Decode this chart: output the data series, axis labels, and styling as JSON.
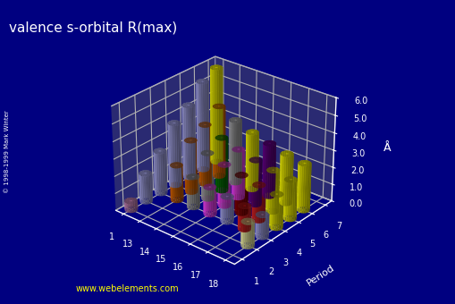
{
  "title": "valence s-orbital R(max)",
  "ylabel": "Period",
  "zlabel": "Å",
  "background_color": "#000080",
  "floor_color": "#555566",
  "title_color": "white",
  "zlim": [
    0,
    6.0
  ],
  "zticks": [
    0.0,
    1.0,
    2.0,
    3.0,
    4.0,
    5.0,
    6.0
  ],
  "groups": [
    1,
    13,
    14,
    15,
    16,
    17,
    18
  ],
  "periods": [
    1,
    2,
    3,
    4,
    5,
    6,
    7
  ],
  "values": [
    [
      0.53,
      0,
      0,
      0,
      0,
      0,
      0
    ],
    [
      1.67,
      0,
      0,
      0,
      0,
      0,
      1.4
    ],
    [
      2.51,
      2.07,
      1.79,
      1.6,
      1.47,
      1.35,
      1.27
    ],
    [
      3.71,
      3.07,
      2.71,
      2.43,
      2.22,
      2.06,
      1.94
    ],
    [
      4.32,
      3.54,
      3.15,
      2.85,
      2.62,
      2.43,
      2.29
    ],
    [
      5.29,
      4.19,
      3.74,
      3.4,
      3.13,
      2.91,
      2.75
    ],
    [
      5.71,
      0,
      0,
      0,
      0,
      0,
      0
    ]
  ],
  "colors": [
    [
      "#cc88bb",
      null,
      null,
      null,
      null,
      null,
      null
    ],
    [
      "#aaaaee",
      null,
      null,
      null,
      null,
      null,
      "#ffffaa"
    ],
    [
      "#aaaaee",
      "#dd6600",
      "#aaaaaa",
      "#ff44ff",
      "#aaaaee",
      "#dd2222",
      "#aaaaee"
    ],
    [
      "#aaaaee",
      "#dd6600",
      "#aaaaaa",
      "#ff44ff",
      "#880000",
      "#dd2222",
      "#ffff00"
    ],
    [
      "#aaaaee",
      "#dd6600",
      "#007700",
      "#ff44ff",
      "#660088",
      "#ffff00",
      "#ffff00"
    ],
    [
      "#aaaaee",
      "#dd6600",
      "#aaaaaa",
      "#ffff00",
      "#660088",
      "#ffff00",
      "#ffff00"
    ],
    [
      "#ffff00",
      null,
      null,
      null,
      null,
      null,
      null
    ]
  ],
  "elev": 28,
  "azim": -50,
  "website": "www.webelements.com"
}
